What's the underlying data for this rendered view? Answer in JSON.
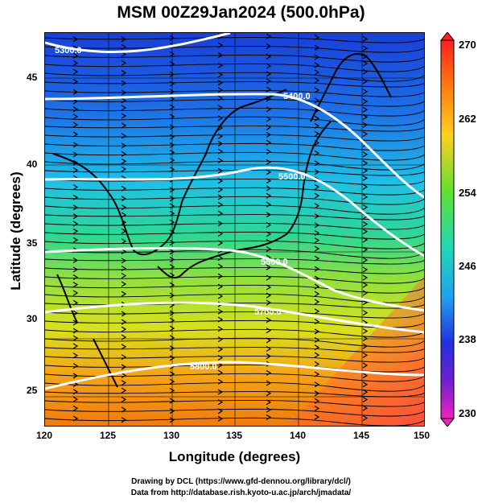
{
  "title": "MSM 00Z29Jan2024 (500.0hPa)",
  "x_axis": {
    "label": "Longitude (degrees)",
    "ticks": [
      "120",
      "125",
      "130",
      "135",
      "140",
      "145",
      "150"
    ],
    "range": [
      120,
      150
    ]
  },
  "y_axis": {
    "label": "Latitude (degrees)",
    "ticks": [
      "25",
      "30",
      "35",
      "40",
      "45"
    ],
    "range": [
      22.4,
      47.6
    ]
  },
  "contours": [
    {
      "label": "5300.0"
    },
    {
      "label": "5400.0"
    },
    {
      "label": "5500.0"
    },
    {
      "label": "5600.0"
    },
    {
      "label": "5700.0"
    },
    {
      "label": "5800.0"
    }
  ],
  "colorbar": {
    "min": 230,
    "max": 270,
    "ticks": [
      "270",
      "262",
      "254",
      "246",
      "238",
      "230"
    ]
  },
  "credits": [
    "Drawing by DCL (https://www.gfd-dennou.org/library/dcl/)",
    "Data from http://database.rish.kyoto-u.ac.jp/arch/jmadata/"
  ]
}
